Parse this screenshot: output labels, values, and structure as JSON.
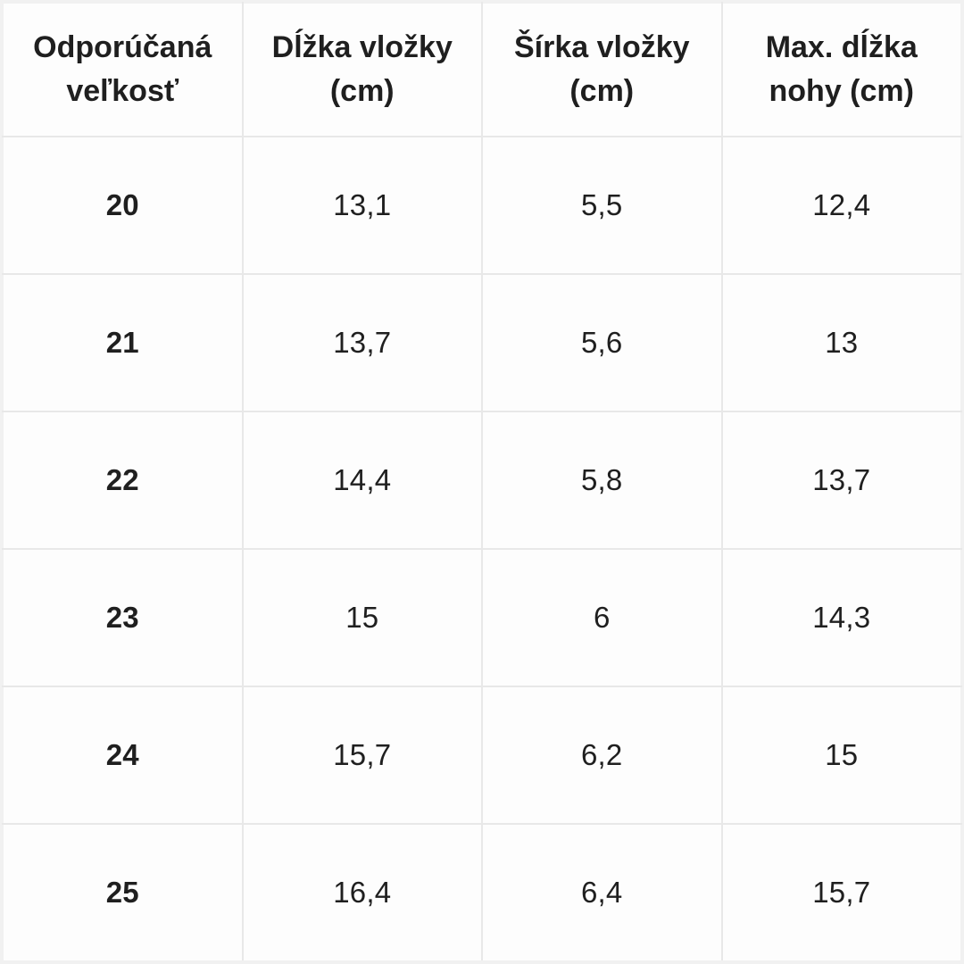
{
  "table": {
    "headers": [
      "Odporúčaná veľkosť",
      "Dĺžka vložky (cm)",
      "Šírka vložky (cm)",
      "Max. dĺžka nohy (cm)"
    ],
    "rows": [
      [
        "20",
        "13,1",
        "5,5",
        "12,4"
      ],
      [
        "21",
        "13,7",
        "5,6",
        "13"
      ],
      [
        "22",
        "14,4",
        "5,8",
        "13,7"
      ],
      [
        "23",
        "15",
        "6",
        "14,3"
      ],
      [
        "24",
        "15,7",
        "6,2",
        "15"
      ],
      [
        "25",
        "16,4",
        "6,4",
        "15,7"
      ]
    ]
  },
  "colors": {
    "border": "#e8e8e8",
    "outer_border": "#f1f1f1",
    "text": "#1f1f1f",
    "background": "#fdfdfd"
  }
}
